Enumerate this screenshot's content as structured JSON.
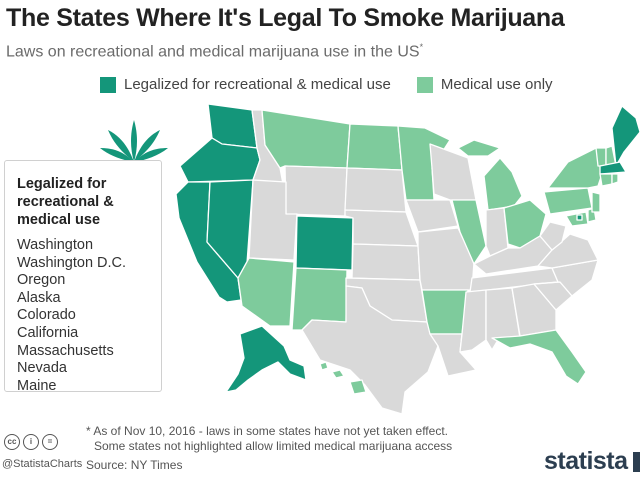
{
  "header": {
    "title": "The States Where It's Legal To Smoke Marijuana",
    "subtitle": "Laws on recreational and medical marijuana use in the US",
    "subtitle_mark": "*"
  },
  "legend": {
    "items": [
      {
        "label": "Legalized for recreational & medical use",
        "color": "#14967a"
      },
      {
        "label": "Medical use only",
        "color": "#7ecb9c"
      }
    ]
  },
  "colors": {
    "recreational": "#14967a",
    "medical": "#7ecb9c",
    "other": "#d9d9d9",
    "border": "#ffffff"
  },
  "state_list": {
    "title": "Legalized for recreational & medical use",
    "items": [
      "Washington",
      "Washington D.C.",
      "Oregon",
      "Alaska",
      "Colorado",
      "California",
      "Massachusetts",
      "Nevada",
      "Maine"
    ]
  },
  "footnote": {
    "line1": "* As  of Nov 10, 2016 - laws in some states have not yet taken effect.",
    "line2": "Some states not highlighted allow limited medical marijuana access"
  },
  "source": "Source: NY Times",
  "branding": {
    "handle": "@StatistaCharts",
    "logo": "statista",
    "cc_icons": [
      "cc",
      "i",
      "="
    ]
  },
  "leaf_icon": "cannabis-leaf-icon"
}
